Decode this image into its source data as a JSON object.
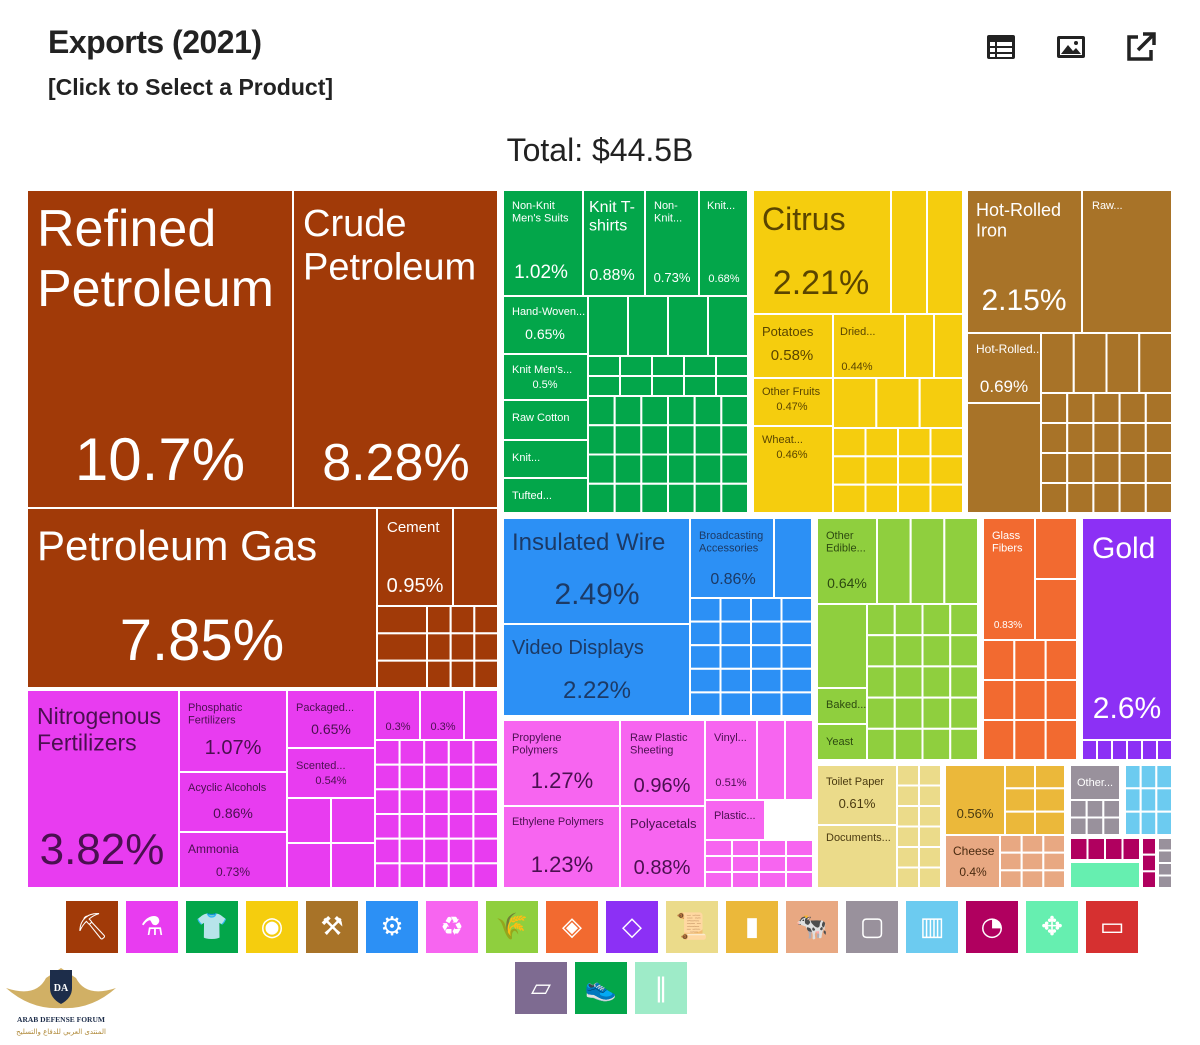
{
  "header": {
    "title": "Exports (2021)",
    "subtitle": "[Click to Select a Product]",
    "total": "Total: $44.5B",
    "toolbar": [
      {
        "name": "table-view-button",
        "icon": "table-icon"
      },
      {
        "name": "image-view-button",
        "icon": "image-icon"
      },
      {
        "name": "external-link-button",
        "icon": "external-link-icon"
      }
    ]
  },
  "colors": {
    "mineral": "#A13A08",
    "textile": "#03A64A",
    "vegetable": "#F5CD0E",
    "metal": "#A87328",
    "gold": "#8C30F5",
    "machinery": "#2C90F5",
    "chemical": "#E83CF0",
    "plastics": "#F765F0",
    "food": "#8FCF3E",
    "stone": "#F26A30",
    "paper": "#EBDB8A",
    "animal": "#E8A882",
    "misc": "#EBB83A",
    "instruments": "#99919C",
    "transport": "#6CCBF0",
    "weapons": "#B0005F",
    "footwear": "#66EFB0"
  },
  "chart_data": {
    "type": "treemap",
    "title": "Exports (2021)",
    "total": "$44.5B",
    "labeled_items": [
      {
        "name": "Refined Petroleum",
        "share": "10.7%",
        "category": "mineral"
      },
      {
        "name": "Crude Petroleum",
        "share": "8.28%",
        "category": "mineral"
      },
      {
        "name": "Petroleum Gas",
        "share": "7.85%",
        "category": "mineral"
      },
      {
        "name": "Cement",
        "share": "0.95%",
        "category": "mineral"
      },
      {
        "name": "Nitrogenous Fertilizers",
        "share": "3.82%",
        "category": "chemical"
      },
      {
        "name": "Phosphatic Fertilizers",
        "share": "1.07%",
        "category": "chemical"
      },
      {
        "name": "Acyclic Alcohols",
        "share": "0.86%",
        "category": "chemical"
      },
      {
        "name": "Ammonia",
        "share": "0.73%",
        "category": "chemical"
      },
      {
        "name": "Packaged...",
        "share": "0.65%",
        "category": "chemical"
      },
      {
        "name": "Scented...",
        "share": "0.54%",
        "category": "chemical"
      },
      {
        "name": "",
        "share": "0.3%",
        "category": "chemical"
      },
      {
        "name": "",
        "share": "0.3%",
        "category": "chemical"
      },
      {
        "name": "Non-Knit Men's Suits",
        "share": "1.02%",
        "category": "textile"
      },
      {
        "name": "Knit T-shirts",
        "share": "0.88%",
        "category": "textile"
      },
      {
        "name": "Non-Knit...",
        "share": "0.73%",
        "category": "textile"
      },
      {
        "name": "Knit...",
        "share": "0.68%",
        "category": "textile"
      },
      {
        "name": "Hand-Woven...",
        "share": "0.65%",
        "category": "textile"
      },
      {
        "name": "Knit Men's...",
        "share": "0.5%",
        "category": "textile"
      },
      {
        "name": "Raw Cotton",
        "share": "",
        "category": "textile"
      },
      {
        "name": "Knit...",
        "share": "",
        "category": "textile"
      },
      {
        "name": "Tufted...",
        "share": "",
        "category": "textile"
      },
      {
        "name": "Citrus",
        "share": "2.21%",
        "category": "vegetable"
      },
      {
        "name": "Potatoes",
        "share": "0.58%",
        "category": "vegetable"
      },
      {
        "name": "Dried...",
        "share": "0.44%",
        "category": "vegetable"
      },
      {
        "name": "Other Fruits",
        "share": "0.47%",
        "category": "vegetable"
      },
      {
        "name": "Wheat...",
        "share": "0.46%",
        "category": "vegetable"
      },
      {
        "name": "Hot-Rolled Iron",
        "share": "2.15%",
        "category": "metal"
      },
      {
        "name": "Raw...",
        "share": "",
        "category": "metal"
      },
      {
        "name": "Hot-Rolled...",
        "share": "0.69%",
        "category": "metal"
      },
      {
        "name": "Insulated Wire",
        "share": "2.49%",
        "category": "machinery"
      },
      {
        "name": "Video Displays",
        "share": "2.22%",
        "category": "machinery"
      },
      {
        "name": "Broadcasting Accessories",
        "share": "0.86%",
        "category": "machinery"
      },
      {
        "name": "Other Edible...",
        "share": "0.64%",
        "category": "food"
      },
      {
        "name": "Baked...",
        "share": "",
        "category": "food"
      },
      {
        "name": "Yeast",
        "share": "",
        "category": "food"
      },
      {
        "name": "Glass Fibers",
        "share": "0.83%",
        "category": "stone"
      },
      {
        "name": "Gold",
        "share": "2.6%",
        "category": "gold"
      },
      {
        "name": "Propylene Polymers",
        "share": "1.27%",
        "category": "plastics"
      },
      {
        "name": "Raw Plastic Sheeting",
        "share": "0.96%",
        "category": "plastics"
      },
      {
        "name": "Vinyl...",
        "share": "0.51%",
        "category": "plastics"
      },
      {
        "name": "Ethylene Polymers",
        "share": "1.23%",
        "category": "plastics"
      },
      {
        "name": "Polyacetals",
        "share": "0.88%",
        "category": "plastics"
      },
      {
        "name": "Plastic...",
        "share": "",
        "category": "plastics"
      },
      {
        "name": "Toilet Paper",
        "share": "0.61%",
        "category": "paper"
      },
      {
        "name": "Documents...",
        "share": "",
        "category": "paper"
      },
      {
        "name": "",
        "share": "0.56%",
        "category": "misc"
      },
      {
        "name": "Cheese",
        "share": "0.4%",
        "category": "animal"
      },
      {
        "name": "Other...",
        "share": "",
        "category": "instruments"
      }
    ]
  },
  "legend": [
    {
      "name": "mineral-products-icon",
      "category": "mineral"
    },
    {
      "name": "chemical-products-icon",
      "category": "chemical"
    },
    {
      "name": "textiles-icon",
      "category": "textile"
    },
    {
      "name": "vegetable-products-icon",
      "category": "vegetable"
    },
    {
      "name": "metals-icon",
      "category": "metal"
    },
    {
      "name": "machines-icon",
      "category": "machinery"
    },
    {
      "name": "plastics-rubbers-icon",
      "category": "plastics"
    },
    {
      "name": "foodstuffs-icon",
      "category": "food"
    },
    {
      "name": "stone-glass-icon",
      "category": "stone"
    },
    {
      "name": "precious-metals-icon",
      "category": "gold"
    },
    {
      "name": "paper-goods-icon",
      "category": "paper"
    },
    {
      "name": "miscellaneous-icon",
      "category": "misc"
    },
    {
      "name": "animal-products-icon",
      "category": "animal"
    },
    {
      "name": "wood-products-icon",
      "category": "instruments"
    },
    {
      "name": "transportation-icon",
      "category": "transport"
    },
    {
      "name": "instruments-icon",
      "category": "weapons"
    },
    {
      "name": "animal-hides-icon",
      "category": "footwear"
    },
    {
      "name": "weapons-icon",
      "category": "weapons2"
    },
    {
      "name": "arts-antiques-icon",
      "category": "arts"
    },
    {
      "name": "footwear-headwear-icon",
      "category": "textile"
    },
    {
      "name": "ammunition-icon",
      "category": "footwear"
    }
  ],
  "watermark": {
    "badge": "DA",
    "line1": "ARAB DEFENSE FORUM",
    "line2": "المنتدى العربي للدفاع والتسليح"
  }
}
